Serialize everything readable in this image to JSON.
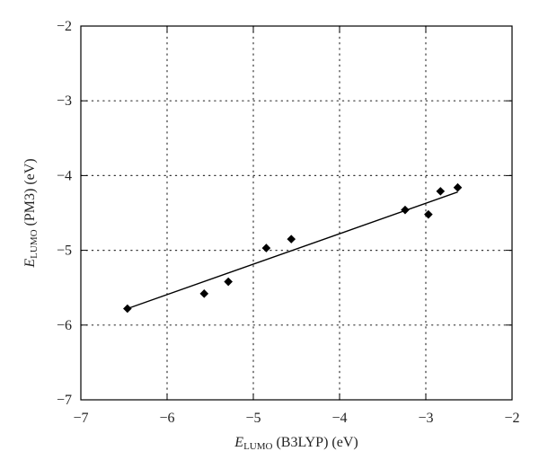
{
  "chart_data": {
    "type": "scatter",
    "title": "",
    "xlabel": {
      "symbol": "E",
      "subscript": "LUMO",
      "rest": " (B3LYP) (eV)"
    },
    "ylabel": {
      "symbol": "E",
      "subscript": "LUMO",
      "rest": " (PM3) (eV)"
    },
    "xlim": [
      -7,
      -2
    ],
    "ylim": [
      -7,
      -2
    ],
    "xticks": [
      -7,
      -6,
      -5,
      -4,
      -3,
      -2
    ],
    "yticks": [
      -7,
      -6,
      -5,
      -4,
      -3,
      -2
    ],
    "xtick_labels": [
      "−7",
      "−6",
      "−5",
      "−4",
      "−3",
      "−2"
    ],
    "ytick_labels": [
      "−7",
      "−6",
      "−5",
      "−4",
      "−3",
      "−2"
    ],
    "grid": true,
    "grid_style": "dotted",
    "marker": "diamond",
    "marker_color": "#000000",
    "points": [
      {
        "x": -6.46,
        "y": -5.78
      },
      {
        "x": -5.57,
        "y": -5.58
      },
      {
        "x": -5.29,
        "y": -5.42
      },
      {
        "x": -4.85,
        "y": -4.97
      },
      {
        "x": -4.56,
        "y": -4.85
      },
      {
        "x": -3.24,
        "y": -4.46
      },
      {
        "x": -2.97,
        "y": -4.52
      },
      {
        "x": -2.83,
        "y": -4.21
      },
      {
        "x": -2.63,
        "y": -4.16
      }
    ],
    "fit_line": {
      "x": [
        -6.46,
        -2.63
      ],
      "y": [
        -5.78,
        -4.22
      ],
      "color": "#000000"
    }
  }
}
